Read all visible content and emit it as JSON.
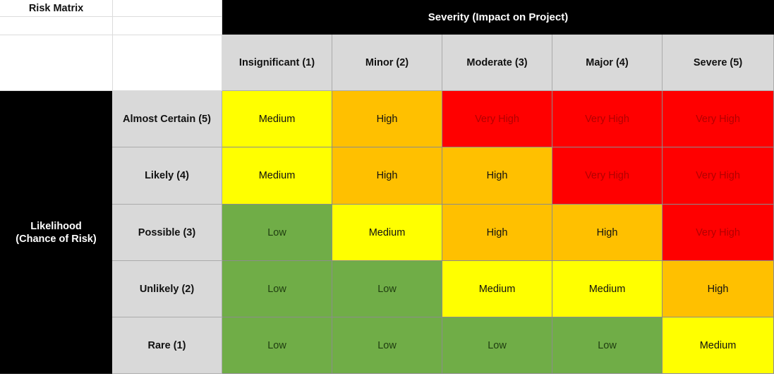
{
  "title": "Risk Matrix",
  "severity_header": "Severity (Impact on Project)",
  "likelihood_header_line1": "Likelihood",
  "likelihood_header_line2": "(Chance of Risk)",
  "severity_levels": [
    "Insignificant (1)",
    "Minor (2)",
    "Moderate (3)",
    "Major (4)",
    "Severe (5)"
  ],
  "likelihood_levels": [
    "Almost Certain (5)",
    "Likely (4)",
    "Possible (3)",
    "Unlikely (2)",
    "Rare (1)"
  ],
  "matrix": [
    [
      "Medium",
      "High",
      "Very High",
      "Very High",
      "Very High"
    ],
    [
      "Medium",
      "High",
      "High",
      "Very High",
      "Very High"
    ],
    [
      "Low",
      "Medium",
      "High",
      "High",
      "Very High"
    ],
    [
      "Low",
      "Low",
      "Medium",
      "Medium",
      "High"
    ],
    [
      "Low",
      "Low",
      "Low",
      "Low",
      "Medium"
    ]
  ],
  "colors": {
    "Low": "#70ad47",
    "Medium": "#ffff00",
    "High": "#ffc000",
    "Very High": "#ff0000",
    "header_bg": "#000000",
    "label_bg": "#d9d9d9"
  }
}
